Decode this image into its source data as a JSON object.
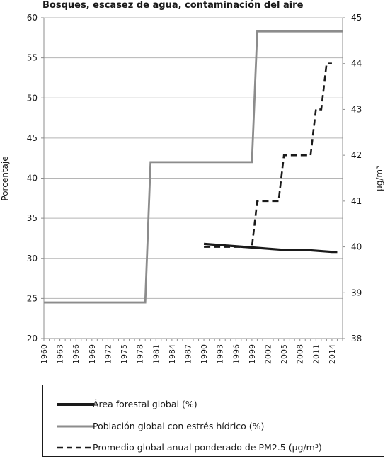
{
  "chart_data": {
    "type": "line",
    "title": "Bosques, escasez de agua, contaminación del aire",
    "xlabel": "",
    "ylabel": "Porcentaje",
    "y2label": "µg/m³",
    "xlim": [
      1960,
      2016
    ],
    "ylim": [
      20,
      60
    ],
    "y2lim": [
      38,
      45
    ],
    "xticks": [
      "1960",
      "1963",
      "1966",
      "1969",
      "1972",
      "1975",
      "1978",
      "1981",
      "1984",
      "1987",
      "1990",
      "1993",
      "1996",
      "1999",
      "2002",
      "2005",
      "2008",
      "2011",
      "2014"
    ],
    "yticks": [
      "20",
      "25",
      "30",
      "35",
      "40",
      "45",
      "50",
      "55",
      "60"
    ],
    "y2ticks": [
      "38",
      "39",
      "40",
      "41",
      "42",
      "43",
      "44",
      "45"
    ],
    "grid": true,
    "legend_position": "bottom",
    "series": [
      {
        "name": "Área forestal global (%)",
        "axis": "left",
        "color": "#1a1a1a",
        "style": "solid-thick",
        "x": [
          1990,
          1992,
          1994,
          1996,
          1998,
          2000,
          2002,
          2004,
          2006,
          2008,
          2010,
          2012,
          2014,
          2015
        ],
        "values": [
          31.8,
          31.7,
          31.6,
          31.5,
          31.4,
          31.3,
          31.2,
          31.1,
          31.0,
          31.0,
          31.0,
          30.9,
          30.8,
          30.8
        ]
      },
      {
        "name": "Población global con estrés hídrico (%)",
        "axis": "left",
        "color": "#8c8c8c",
        "style": "solid",
        "x": [
          1960,
          1979,
          1980,
          1999,
          2000,
          2016
        ],
        "values": [
          24.5,
          24.5,
          42.0,
          42.0,
          58.3,
          58.3
        ]
      },
      {
        "name_parts": [
          "Promedio global anual ponderado de ",
          "PM",
          "2.5 (µg/m³)"
        ],
        "axis": "right",
        "color": "#1a1a1a",
        "style": "dashed",
        "x": [
          1990,
          1999,
          2000,
          2004,
          2005,
          2010,
          2011,
          2012,
          2013,
          2014
        ],
        "values": [
          40.0,
          40.0,
          41.0,
          41.0,
          42.0,
          42.0,
          43.0,
          43.0,
          44.0,
          44.0
        ]
      }
    ]
  }
}
